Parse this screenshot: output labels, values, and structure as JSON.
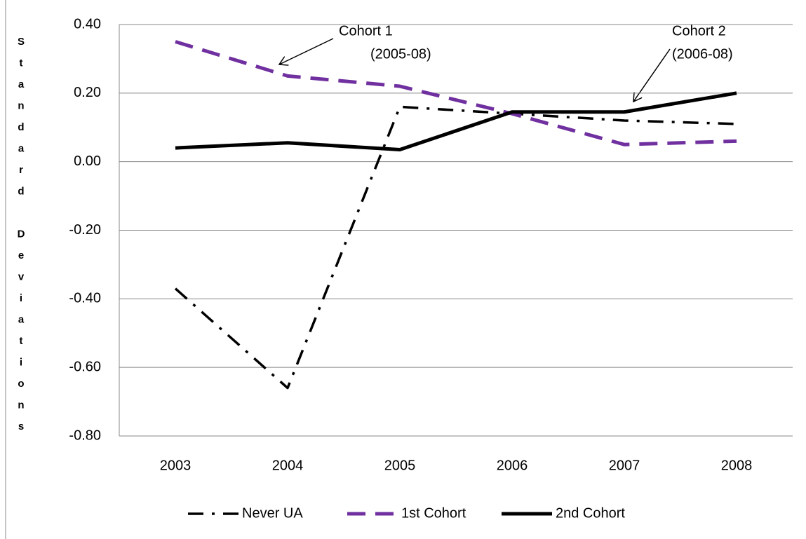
{
  "chart_data": {
    "type": "line",
    "y_axis_label": "Standard Deviations",
    "categories": [
      "2003",
      "2004",
      "2005",
      "2006",
      "2007",
      "2008"
    ],
    "series": [
      {
        "name": "Never UA",
        "color": "#000000",
        "style": "dash-dot",
        "values": [
          -0.37,
          -0.66,
          0.16,
          0.14,
          0.12,
          0.11
        ]
      },
      {
        "name": "1st Cohort",
        "color": "#7030a0",
        "style": "dashed",
        "values": [
          0.35,
          0.25,
          0.22,
          0.14,
          0.05,
          0.06
        ]
      },
      {
        "name": "2nd Cohort",
        "color": "#000000",
        "style": "solid",
        "values": [
          0.04,
          0.055,
          0.035,
          0.145,
          0.145,
          0.2
        ]
      }
    ],
    "ylim": [
      -0.8,
      0.4
    ],
    "yticks": [
      {
        "value": -0.8,
        "label": "-0.80"
      },
      {
        "value": -0.6,
        "label": "-0.60"
      },
      {
        "value": -0.4,
        "label": "-0.40"
      },
      {
        "value": -0.2,
        "label": "-0.20"
      },
      {
        "value": 0,
        "label": "0.00"
      },
      {
        "value": 0.2,
        "label": "0.20"
      },
      {
        "value": 0.4,
        "label": "0.40"
      }
    ],
    "grid": true,
    "legend": "bottom",
    "annotations": [
      [
        "Cohort 1",
        "(2005-08)"
      ],
      [
        "Cohort 2",
        "(2006-08)"
      ]
    ]
  }
}
